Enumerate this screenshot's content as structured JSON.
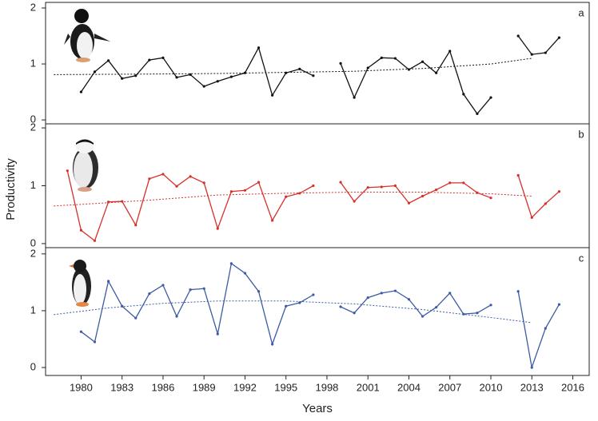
{
  "chart_data": [
    {
      "type": "line",
      "label": "a",
      "x": [
        1979,
        1980,
        1981,
        1982,
        1983,
        1984,
        1985,
        1986,
        1987,
        1988,
        1989,
        1990,
        1991,
        1992,
        1993,
        1994,
        1995,
        1996,
        1997,
        1998,
        1999,
        2000,
        2001,
        2002,
        2003,
        2004,
        2005,
        2006,
        2007,
        2008,
        2009,
        2010,
        2011,
        2012,
        2013,
        2014,
        2015
      ],
      "series": [
        {
          "color": "#111111",
          "values": [
            null,
            0.5,
            0.86,
            1.06,
            0.74,
            0.79,
            1.07,
            1.11,
            0.76,
            0.81,
            0.6,
            0.69,
            0.77,
            0.84,
            1.29,
            0.44,
            0.84,
            0.91,
            0.79,
            null,
            1.01,
            0.4,
            0.93,
            1.11,
            1.1,
            0.9,
            1.04,
            0.84,
            1.23,
            0.46,
            0.11,
            0.4,
            null,
            1.5,
            1.17,
            1.2,
            1.47
          ]
        }
      ],
      "trend": {
        "x": [
          1978,
          1985,
          1990,
          1995,
          2000,
          2005,
          2010,
          2013
        ],
        "values": [
          0.81,
          0.82,
          0.83,
          0.85,
          0.87,
          0.92,
          1.0,
          1.1
        ],
        "color": "#111111"
      },
      "xlim": [
        1977.4,
        2017.2
      ],
      "ylim": [
        -0.07,
        2.1
      ],
      "yticks": [
        0,
        1,
        2
      ]
    },
    {
      "type": "line",
      "label": "b",
      "ylabel": "Productivity",
      "x": [
        1979,
        1980,
        1981,
        1982,
        1983,
        1984,
        1985,
        1986,
        1987,
        1988,
        1989,
        1990,
        1991,
        1992,
        1993,
        1994,
        1995,
        1996,
        1997,
        1998,
        1999,
        2000,
        2001,
        2002,
        2003,
        2004,
        2005,
        2006,
        2007,
        2008,
        2009,
        2010,
        2011,
        2012,
        2013,
        2014,
        2015
      ],
      "series": [
        {
          "color": "#d7302a",
          "values": [
            1.26,
            0.23,
            0.05,
            0.72,
            0.73,
            0.32,
            1.12,
            1.2,
            0.99,
            1.16,
            1.05,
            0.26,
            0.9,
            0.92,
            1.06,
            0.4,
            0.81,
            0.87,
            1.0,
            null,
            1.06,
            0.73,
            0.97,
            0.98,
            1.0,
            0.7,
            0.82,
            0.93,
            1.05,
            1.05,
            0.88,
            0.79,
            null,
            1.18,
            0.45,
            0.69,
            0.9
          ]
        }
      ],
      "trend": {
        "x": [
          1978,
          1985,
          1990,
          1995,
          2000,
          2005,
          2010,
          2013
        ],
        "values": [
          0.65,
          0.75,
          0.84,
          0.87,
          0.89,
          0.89,
          0.86,
          0.82
        ],
        "color": "#d7302a"
      },
      "xlim": [
        1977.4,
        2017.2
      ],
      "ylim": [
        -0.07,
        2.07
      ],
      "yticks": [
        0,
        1,
        2
      ]
    },
    {
      "type": "line",
      "label": "c",
      "xlabel": "Years",
      "x": [
        1979,
        1980,
        1981,
        1982,
        1983,
        1984,
        1985,
        1986,
        1987,
        1988,
        1989,
        1990,
        1991,
        1992,
        1993,
        1994,
        1995,
        1996,
        1997,
        1998,
        1999,
        2000,
        2001,
        2002,
        2003,
        2004,
        2005,
        2006,
        2007,
        2008,
        2009,
        2010,
        2011,
        2012,
        2013,
        2014,
        2015
      ],
      "series": [
        {
          "color": "#3b5ba5",
          "values": [
            null,
            0.63,
            0.45,
            1.52,
            1.08,
            0.87,
            1.3,
            1.45,
            0.9,
            1.37,
            1.39,
            0.59,
            1.83,
            1.66,
            1.34,
            0.41,
            1.08,
            1.14,
            1.28,
            null,
            1.07,
            0.96,
            1.23,
            1.31,
            1.35,
            1.2,
            0.9,
            1.06,
            1.31,
            0.94,
            0.96,
            1.1,
            null,
            1.34,
            0,
            0.69,
            1.11
          ]
        }
      ],
      "trend": {
        "x": [
          1978,
          1982,
          1986,
          1990,
          1995,
          2000,
          2005,
          2010,
          2013
        ],
        "values": [
          0.93,
          1.05,
          1.13,
          1.17,
          1.17,
          1.12,
          1.02,
          0.88,
          0.79
        ],
        "color": "#3b5ba5"
      },
      "xlim": [
        1977.4,
        2017.2
      ],
      "ylim": [
        -0.14,
        2.11
      ],
      "yticks": [
        0,
        1,
        2
      ],
      "xticks": [
        1980,
        1983,
        1986,
        1989,
        1992,
        1995,
        1998,
        2001,
        2004,
        2007,
        2010,
        2013,
        2016
      ]
    }
  ]
}
